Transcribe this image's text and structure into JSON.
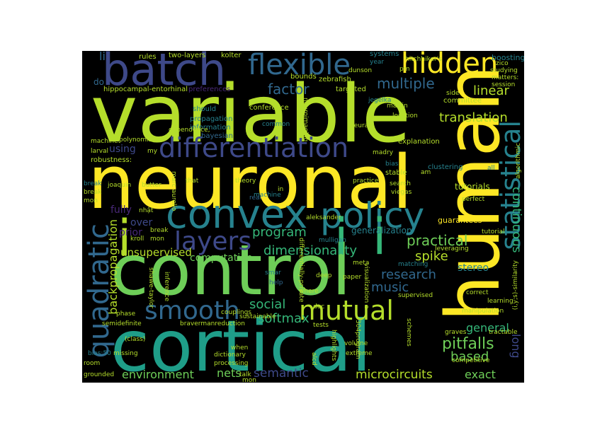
{
  "palette": {
    "yellow": "#fde725",
    "lime": "#b5de2b",
    "green": "#6ece58",
    "teal_green": "#35b779",
    "teal": "#1f9e89",
    "cyan": "#26828e",
    "blue": "#31688e",
    "indigo": "#3e4989",
    "purple": "#482878",
    "dark": "#440154",
    "background": "#000000"
  },
  "words": {
    "variable": "variable",
    "neuronal": "neuronal",
    "human": "human",
    "control": "control",
    "cortical": "cortical",
    "batch": "batch",
    "flexible": "flexible",
    "hidden": "hidden",
    "convex": "convex",
    "policy": "policy",
    "differentiation": "differentiation",
    "statistical": "statistical",
    "layers": "layers",
    "quadratic": "quadratic",
    "smooth": "smooth",
    "mutual": "mutual",
    "i1": "i",
    "i2": "i",
    "i3": "i",
    "translation": "translation",
    "continuous": "continuous",
    "linear": "linear",
    "factor": "factor",
    "multiple": "multiple",
    "practical": "practical",
    "program": "program",
    "dimensionality": "dimensionality",
    "spike": "spike",
    "research": "research",
    "music": "music",
    "social": "social",
    "softmax": "softmax",
    "pitfalls": "pitfalls",
    "based": "based",
    "general": "general",
    "exact": "exact",
    "long": "long",
    "environment": "environment",
    "nets": "nets",
    "semantic": "semantic",
    "microcircuits": "microcircuits",
    "backpropagation": "backpropagation",
    "unsupervised": "unsupervised",
    "computation": "computation",
    "using": "using",
    "over": "over",
    "prior": "prior",
    "fully": "fully",
    "li": "li",
    "do": "do",
    "stereo": "stereo",
    "generalization": "generalization",
    "guarantees": "guarantees",
    "tutorials": "tutorials",
    "boosting": "boosting",
    "rules": "rules",
    "two_layers": "two-layers",
    "kolter": "kolter",
    "systems": "systems",
    "hippocampal": "hippocampal-entorhinal",
    "preferences": "preferences",
    "zebrafish": "zebrafish",
    "targeted": "targeted",
    "bounds": "bounds",
    "jegelka": "jegelka",
    "conference": "conference",
    "committee": "committee",
    "propagation": "propagation",
    "information": "information",
    "bayesian": "bayesian",
    "should": "should",
    "dependence": "dependence,",
    "common": "common",
    "explanation": "explanation",
    "machine": "machine:",
    "polynomials": "polynomials,",
    "larval": "larval",
    "robustness": "robustness:",
    "clustering": "clustering",
    "bias": "bias",
    "stable": "stable",
    "search": "search",
    "viegas": "viegas",
    "madry": "madry",
    "perfect": "perfect",
    "all": "all",
    "theory": "theory",
    "machine2": "machine",
    "real": "real",
    "in": "in",
    "break1": "break",
    "break2": "break",
    "break3": "break",
    "mon1": "mon",
    "mon2": "mon",
    "joaquin": "joaquin",
    "butter": "butter",
    "marc": "marc aurelio",
    "nhat": "nhật",
    "aleksander": "aleksander",
    "mulligan": "mulligan",
    "meta": "meta",
    "kroll": "kroll",
    "leveraging": "leveraging",
    "matching": "matching",
    "deep": "deep",
    "paper": "paper",
    "help": "help",
    "where": "where",
    "correct": "correct",
    "similarity": "(i,y;s)-similarity",
    "supervised": "supervised",
    "manipulation": "manipulation",
    "tractable": "tractable",
    "graves": "graves",
    "competitive": "competitive",
    "semidefinite": "semidefinite",
    "bravermanreduction": "bravermanreduction",
    "phase": "phase",
    "class": "(class)",
    "missing": "missing",
    "grounded": "grounded",
    "room": "room",
    "bias50": "bias:50",
    "dictionary": "dictionary",
    "processing": "processing",
    "when": "when",
    "talk": "talk",
    "mon3": "mon",
    "volume": "volume",
    "extreme": "extreme",
    "dunson": "dunson",
    "schemes": "schemes",
    "tests": "tests",
    "highlights": "highlights",
    "alcd": "alcd",
    "couplings": "couplings",
    "sustainable": "sustainable",
    "dec": "dec",
    "diff_private": "differentially-private",
    "pm": "pm",
    "year": "year",
    "hitchhikers": "hitchhiker's",
    "zico": "zico",
    "studying": "studying",
    "session": "session",
    "matters": "matters:",
    "side": "side",
    "location": "location",
    "martin": "martin",
    "neural": "neural",
    "algorithmic": "algorithmic",
    "my": "my",
    "that": "that",
    "practice": "practice",
    "am": "am",
    "tutorial": "tutorial",
    "learning": "learning",
    "program304": "304program",
    "visualization": "visualization e",
    "shawe_taylor": "shawe-taylor",
    "inference": "inference",
    "neuroimaging": "neuroimaging",
    "smar": "smar"
  }
}
